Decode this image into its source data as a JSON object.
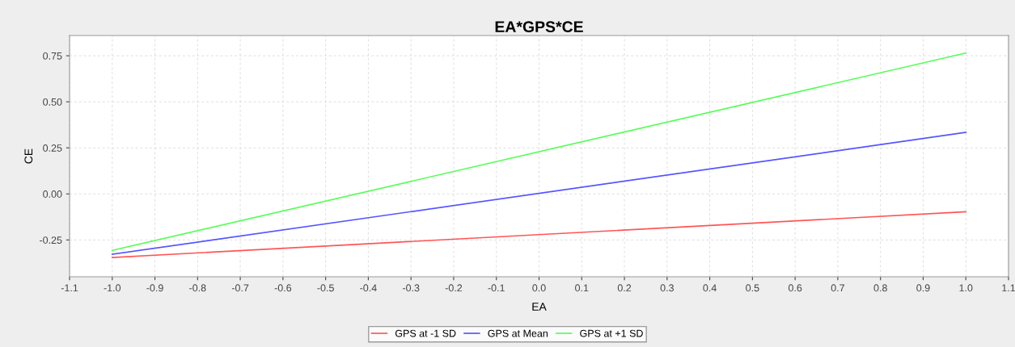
{
  "chart_data": {
    "type": "line",
    "title": "EA*GPS*CE",
    "xlabel": "EA",
    "ylabel": "CE",
    "x": [
      -1.0,
      1.0
    ],
    "series": [
      {
        "name": "GPS at -1 SD",
        "color": "#ff5555",
        "values": [
          -0.345,
          -0.097
        ]
      },
      {
        "name": "GPS at Mean",
        "color": "#5555ff",
        "values": [
          -0.328,
          0.334
        ]
      },
      {
        "name": "GPS at +1 SD",
        "color": "#55ff55",
        "values": [
          -0.307,
          0.765
        ]
      }
    ],
    "xlim": [
      -1.1,
      1.1
    ],
    "xticks": [
      {
        "value": -1.1,
        "label": "-1.1"
      },
      {
        "value": -1.0,
        "label": "-1.0"
      },
      {
        "value": -0.9,
        "label": "-0.9"
      },
      {
        "value": -0.8,
        "label": "-0.8"
      },
      {
        "value": -0.7,
        "label": "-0.7"
      },
      {
        "value": -0.6,
        "label": "-0.6"
      },
      {
        "value": -0.5,
        "label": "-0.5"
      },
      {
        "value": -0.4,
        "label": "-0.4"
      },
      {
        "value": -0.3,
        "label": "-0.3"
      },
      {
        "value": -0.2,
        "label": "-0.2"
      },
      {
        "value": -0.1,
        "label": "-0.1"
      },
      {
        "value": 0.0,
        "label": "0.0"
      },
      {
        "value": 0.1,
        "label": "0.1"
      },
      {
        "value": 0.2,
        "label": "0.2"
      },
      {
        "value": 0.3,
        "label": "0.3"
      },
      {
        "value": 0.4,
        "label": "0.4"
      },
      {
        "value": 0.5,
        "label": "0.5"
      },
      {
        "value": 0.6,
        "label": "0.6"
      },
      {
        "value": 0.7,
        "label": "0.7"
      },
      {
        "value": 0.8,
        "label": "0.8"
      },
      {
        "value": 0.9,
        "label": "0.9"
      },
      {
        "value": 1.0,
        "label": "1.0"
      },
      {
        "value": 1.1,
        "label": "1.1"
      }
    ],
    "ylim": [
      -0.45,
      0.86
    ],
    "yticks": [
      {
        "value": -0.25,
        "label": "-0.25"
      },
      {
        "value": 0.0,
        "label": "0.00"
      },
      {
        "value": 0.25,
        "label": "0.25"
      },
      {
        "value": 0.5,
        "label": "0.50"
      },
      {
        "value": 0.75,
        "label": "0.75"
      }
    ],
    "grid": true,
    "legend": "bottom",
    "marker": "none",
    "line_style": "solid"
  }
}
